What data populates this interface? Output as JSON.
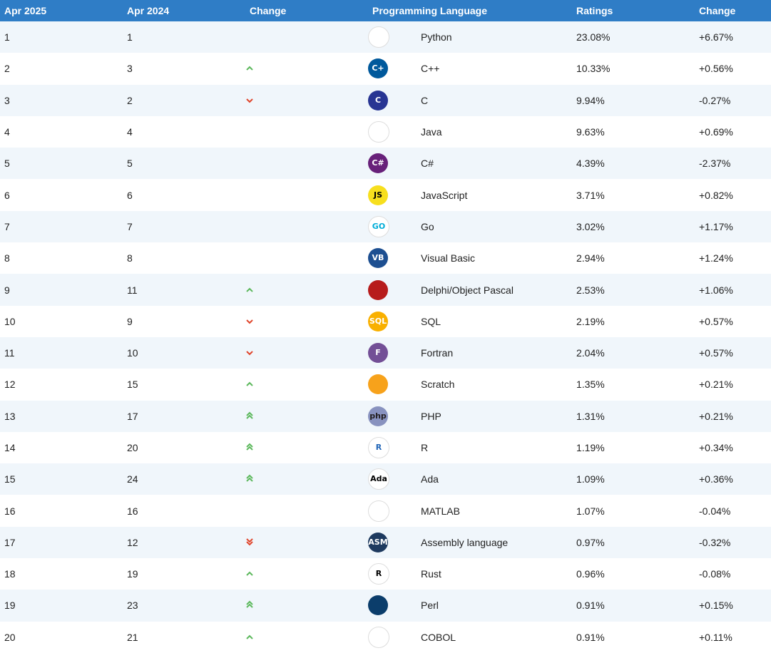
{
  "header": {
    "col_now": "Apr 2025",
    "col_prev": "Apr 2024",
    "col_change": "Change",
    "col_language": "Programming Language",
    "col_ratings": "Ratings",
    "col_change2": "Change"
  },
  "rows": [
    {
      "now": "1",
      "prev": "1",
      "trend": "none",
      "icon": "python-icon",
      "language": "Python",
      "rating": "23.08%",
      "change": "+6.67%"
    },
    {
      "now": "2",
      "prev": "3",
      "trend": "up",
      "icon": "cpp-icon",
      "language": "C++",
      "rating": "10.33%",
      "change": "+0.56%"
    },
    {
      "now": "3",
      "prev": "2",
      "trend": "down",
      "icon": "c-icon",
      "language": "C",
      "rating": "9.94%",
      "change": "-0.27%"
    },
    {
      "now": "4",
      "prev": "4",
      "trend": "none",
      "icon": "java-icon",
      "language": "Java",
      "rating": "9.63%",
      "change": "+0.69%"
    },
    {
      "now": "5",
      "prev": "5",
      "trend": "none",
      "icon": "csharp-icon",
      "language": "C#",
      "rating": "4.39%",
      "change": "-2.37%"
    },
    {
      "now": "6",
      "prev": "6",
      "trend": "none",
      "icon": "javascript-icon",
      "language": "JavaScript",
      "rating": "3.71%",
      "change": "+0.82%"
    },
    {
      "now": "7",
      "prev": "7",
      "trend": "none",
      "icon": "go-icon",
      "language": "Go",
      "rating": "3.02%",
      "change": "+1.17%"
    },
    {
      "now": "8",
      "prev": "8",
      "trend": "none",
      "icon": "visual-basic-icon",
      "language": "Visual Basic",
      "rating": "2.94%",
      "change": "+1.24%"
    },
    {
      "now": "9",
      "prev": "11",
      "trend": "up",
      "icon": "delphi-icon",
      "language": "Delphi/Object Pascal",
      "rating": "2.53%",
      "change": "+1.06%"
    },
    {
      "now": "10",
      "prev": "9",
      "trend": "down",
      "icon": "sql-icon",
      "language": "SQL",
      "rating": "2.19%",
      "change": "+0.57%"
    },
    {
      "now": "11",
      "prev": "10",
      "trend": "down",
      "icon": "fortran-icon",
      "language": "Fortran",
      "rating": "2.04%",
      "change": "+0.57%"
    },
    {
      "now": "12",
      "prev": "15",
      "trend": "up",
      "icon": "scratch-icon",
      "language": "Scratch",
      "rating": "1.35%",
      "change": "+0.21%"
    },
    {
      "now": "13",
      "prev": "17",
      "trend": "upup",
      "icon": "php-icon",
      "language": "PHP",
      "rating": "1.31%",
      "change": "+0.21%"
    },
    {
      "now": "14",
      "prev": "20",
      "trend": "upup",
      "icon": "r-icon",
      "language": "R",
      "rating": "1.19%",
      "change": "+0.34%"
    },
    {
      "now": "15",
      "prev": "24",
      "trend": "upup",
      "icon": "ada-icon",
      "language": "Ada",
      "rating": "1.09%",
      "change": "+0.36%"
    },
    {
      "now": "16",
      "prev": "16",
      "trend": "none",
      "icon": "matlab-icon",
      "language": "MATLAB",
      "rating": "1.07%",
      "change": "-0.04%"
    },
    {
      "now": "17",
      "prev": "12",
      "trend": "downdown",
      "icon": "assembly-icon",
      "language": "Assembly language",
      "rating": "0.97%",
      "change": "-0.32%"
    },
    {
      "now": "18",
      "prev": "19",
      "trend": "up",
      "icon": "rust-icon",
      "language": "Rust",
      "rating": "0.96%",
      "change": "-0.08%"
    },
    {
      "now": "19",
      "prev": "23",
      "trend": "upup",
      "icon": "perl-icon",
      "language": "Perl",
      "rating": "0.91%",
      "change": "+0.15%"
    },
    {
      "now": "20",
      "prev": "21",
      "trend": "up",
      "icon": "cobol-icon",
      "language": "COBOL",
      "rating": "0.91%",
      "change": "+0.11%"
    }
  ],
  "logos": {
    "python-icon": {
      "text": "",
      "bg": "#ffffff",
      "fg": "#3776ab"
    },
    "cpp-icon": {
      "text": "C+",
      "bg": "#00599c",
      "fg": "#ffffff"
    },
    "c-icon": {
      "text": "C",
      "bg": "#283593",
      "fg": "#ffffff"
    },
    "java-icon": {
      "text": "",
      "bg": "#ffffff",
      "fg": "#e76f00"
    },
    "csharp-icon": {
      "text": "C#",
      "bg": "#68217a",
      "fg": "#ffffff"
    },
    "javascript-icon": {
      "text": "JS",
      "bg": "#f7df1e",
      "fg": "#000000"
    },
    "go-icon": {
      "text": "GO",
      "bg": "#ffffff",
      "fg": "#00add8"
    },
    "visual-basic-icon": {
      "text": "VB",
      "bg": "#1d4f91",
      "fg": "#ffffff"
    },
    "delphi-icon": {
      "text": "",
      "bg": "#b71c1c",
      "fg": "#ffffff"
    },
    "sql-icon": {
      "text": "SQL",
      "bg": "#f9b000",
      "fg": "#ffffff"
    },
    "fortran-icon": {
      "text": "F",
      "bg": "#734f96",
      "fg": "#ffffff"
    },
    "scratch-icon": {
      "text": "",
      "bg": "#f7a21b",
      "fg": "#ffffff"
    },
    "php-icon": {
      "text": "php",
      "bg": "#8892bf",
      "fg": "#231f20"
    },
    "r-icon": {
      "text": "R",
      "bg": "#ffffff",
      "fg": "#2266b8"
    },
    "ada-icon": {
      "text": "Ada",
      "bg": "#ffffff",
      "fg": "#000000"
    },
    "matlab-icon": {
      "text": "",
      "bg": "#ffffff",
      "fg": "#e16737"
    },
    "assembly-icon": {
      "text": "ASM",
      "bg": "#1e3a5f",
      "fg": "#ffffff"
    },
    "rust-icon": {
      "text": "R",
      "bg": "#ffffff",
      "fg": "#000000"
    },
    "perl-icon": {
      "text": "",
      "bg": "#0b3d6b",
      "fg": "#ffffff"
    },
    "cobol-icon": {
      "text": "",
      "bg": "#ffffff",
      "fg": "#1f6fb2"
    }
  },
  "colors": {
    "header_bg": "#2f7dc6",
    "row_alt": "#f0f6fb",
    "arrow_up": "#5cb85c",
    "arrow_down": "#e0442a"
  }
}
